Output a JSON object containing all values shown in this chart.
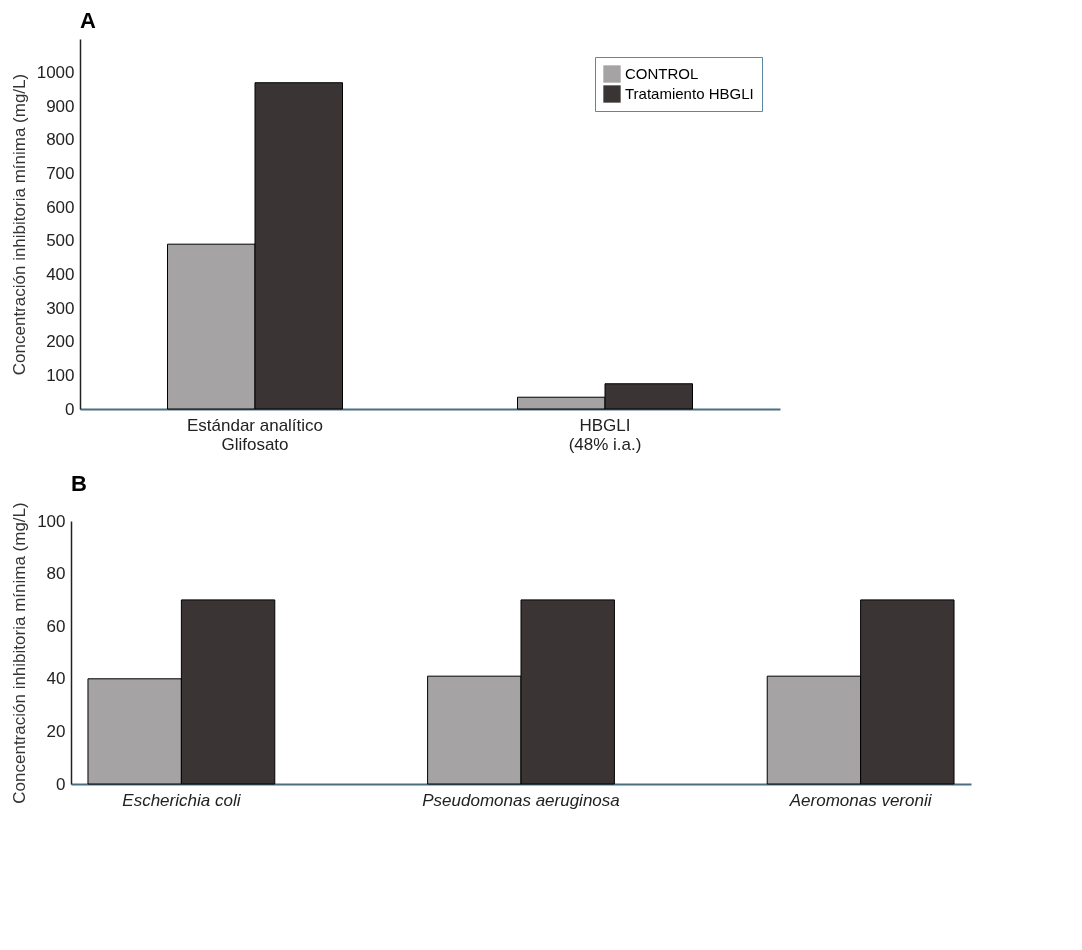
{
  "chart_data": [
    {
      "type": "bar",
      "title": "A",
      "ylabel": "Concentración inhibitoria mínima (mg/L)",
      "categories": [
        "Estándar analítico\nGlifosato",
        "HBGLI\n(48% i.a.)"
      ],
      "series": [
        {
          "name": "CONTROL",
          "color": "#a5a3a3",
          "values": [
            490,
            35
          ]
        },
        {
          "name": "Tratamiento HBGLI",
          "color": "#3a3534",
          "values": [
            970,
            75
          ]
        }
      ],
      "ylim": [
        0,
        1100
      ],
      "yticks": [
        0,
        100,
        200,
        300,
        400,
        500,
        600,
        700,
        800,
        900,
        1000
      ],
      "grid": false,
      "legend": "top right"
    },
    {
      "type": "bar",
      "title": "B",
      "ylabel": "Concentración inhibitoria mínima (mg/L)",
      "categories": [
        "Escherichia coli",
        "Pseudomonas aeruginosa",
        "Aeromonas veronii"
      ],
      "series": [
        {
          "color": "#a5a3a3",
          "values": [
            40,
            41,
            41
          ]
        },
        {
          "color": "#3a3534",
          "values": [
            70,
            70,
            70
          ]
        }
      ],
      "ylim": [
        0,
        100
      ],
      "yticks": [
        0,
        20,
        40,
        60,
        80,
        100
      ],
      "grid": false
    }
  ]
}
